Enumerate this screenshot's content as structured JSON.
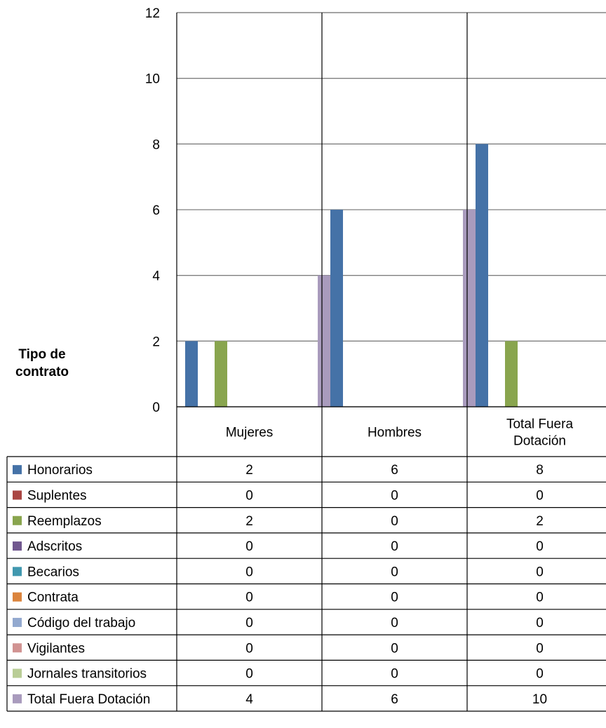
{
  "chart_data": {
    "type": "bar",
    "ylabel": "Tipo de\ncontrato",
    "ylim": [
      0,
      12
    ],
    "yticks": [
      0,
      2,
      4,
      6,
      8,
      10,
      12
    ],
    "grid": true,
    "legend": "table-below",
    "categories": [
      {
        "label_lines": [
          "Mujeres"
        ]
      },
      {
        "label_lines": [
          "Hombres"
        ]
      },
      {
        "label_lines": [
          "Total Fuera",
          "Dotación"
        ]
      }
    ],
    "series": [
      {
        "name": "Honorarios",
        "color": "#4572A7",
        "values": [
          2,
          6,
          8
        ]
      },
      {
        "name": "Suplentes",
        "color": "#AA4643",
        "values": [
          0,
          0,
          0
        ]
      },
      {
        "name": "Reemplazos",
        "color": "#89A54E",
        "values": [
          2,
          0,
          2
        ]
      },
      {
        "name": "Adscritos",
        "color": "#71588F",
        "values": [
          0,
          0,
          0
        ]
      },
      {
        "name": "Becarios",
        "color": "#4198AF",
        "values": [
          0,
          0,
          0
        ]
      },
      {
        "name": "Contrata",
        "color": "#DB843D",
        "values": [
          0,
          0,
          0
        ]
      },
      {
        "name": "Código del trabajo",
        "color": "#93A9CF",
        "values": [
          0,
          0,
          0
        ]
      },
      {
        "name": "Vigilantes",
        "color": "#D19392",
        "values": [
          0,
          0,
          0
        ]
      },
      {
        "name": "Jornales transitorios",
        "color": "#B9CD96",
        "values": [
          0,
          0,
          0
        ]
      },
      {
        "name": "Total Fuera Dotación",
        "color": "#A99BBD",
        "values": [
          4,
          6,
          10
        ]
      }
    ]
  }
}
